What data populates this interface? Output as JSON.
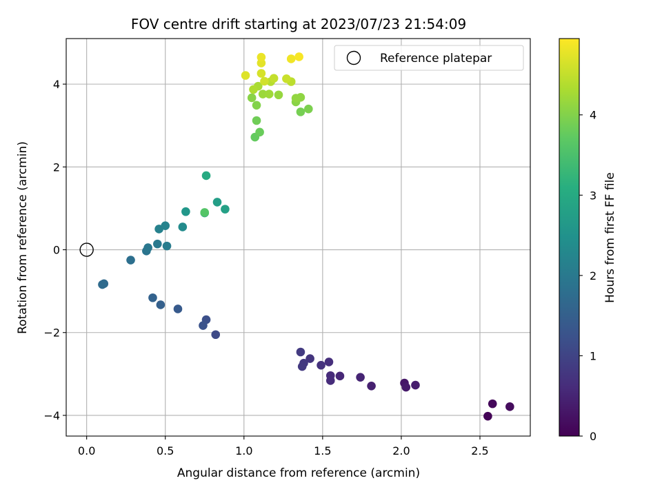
{
  "chart_data": {
    "type": "scatter",
    "title": "FOV centre drift starting at 2023/07/23 21:54:09",
    "xlabel": "Angular distance from reference (arcmin)",
    "ylabel": "Rotation from reference (arcmin)",
    "xlim": [
      -0.13,
      2.82
    ],
    "ylim": [
      -4.5,
      5.1
    ],
    "xticks": [
      0.0,
      0.5,
      1.0,
      1.5,
      2.0,
      2.5
    ],
    "xtick_labels": [
      "0.0",
      "0.5",
      "1.0",
      "1.5",
      "2.0",
      "2.5"
    ],
    "yticks": [
      -4,
      -2,
      0,
      2,
      4
    ],
    "ytick_labels": [
      "−4",
      "−2",
      "0",
      "2",
      "4"
    ],
    "grid": true,
    "legend": {
      "placement": "top-right",
      "entries": [
        "Reference platepar"
      ]
    },
    "reference_point": {
      "x": 0.0,
      "y": 0.0
    },
    "colorbar": {
      "label": "Hours from first FF file",
      "colormap": "viridis",
      "range": [
        0,
        4.95
      ],
      "ticks": [
        0,
        1,
        2,
        3,
        4
      ],
      "tick_labels": [
        "0",
        "1",
        "2",
        "3",
        "4"
      ]
    },
    "points": [
      {
        "x": 2.55,
        "y": -4.02,
        "c": 0.05
      },
      {
        "x": 2.58,
        "y": -3.72,
        "c": 0.1
      },
      {
        "x": 2.69,
        "y": -3.79,
        "c": 0.15
      },
      {
        "x": 2.02,
        "y": -3.22,
        "c": 0.3
      },
      {
        "x": 2.03,
        "y": -3.32,
        "c": 0.35
      },
      {
        "x": 2.09,
        "y": -3.27,
        "c": 0.4
      },
      {
        "x": 1.81,
        "y": -3.29,
        "c": 0.45
      },
      {
        "x": 1.74,
        "y": -3.08,
        "c": 0.5
      },
      {
        "x": 1.61,
        "y": -3.05,
        "c": 0.55
      },
      {
        "x": 1.55,
        "y": -3.04,
        "c": 0.6
      },
      {
        "x": 1.55,
        "y": -3.16,
        "c": 0.62
      },
      {
        "x": 1.54,
        "y": -2.71,
        "c": 0.65
      },
      {
        "x": 1.49,
        "y": -2.79,
        "c": 0.7
      },
      {
        "x": 1.42,
        "y": -2.63,
        "c": 0.75
      },
      {
        "x": 1.38,
        "y": -2.74,
        "c": 0.8
      },
      {
        "x": 1.37,
        "y": -2.82,
        "c": 0.82
      },
      {
        "x": 1.36,
        "y": -2.47,
        "c": 0.85
      },
      {
        "x": 0.82,
        "y": -2.05,
        "c": 1.1
      },
      {
        "x": 0.76,
        "y": -1.69,
        "c": 1.2
      },
      {
        "x": 0.74,
        "y": -1.83,
        "c": 1.25
      },
      {
        "x": 0.58,
        "y": -1.43,
        "c": 1.4
      },
      {
        "x": 0.47,
        "y": -1.33,
        "c": 1.5
      },
      {
        "x": 0.42,
        "y": -1.16,
        "c": 1.55
      },
      {
        "x": 0.11,
        "y": -0.82,
        "c": 1.7
      },
      {
        "x": 0.1,
        "y": -0.84,
        "c": 1.72
      },
      {
        "x": 0.28,
        "y": -0.25,
        "c": 1.8
      },
      {
        "x": 0.38,
        "y": -0.03,
        "c": 1.9
      },
      {
        "x": 0.39,
        "y": 0.05,
        "c": 1.95
      },
      {
        "x": 0.45,
        "y": 0.14,
        "c": 2.0
      },
      {
        "x": 0.51,
        "y": 0.09,
        "c": 2.05
      },
      {
        "x": 0.46,
        "y": 0.5,
        "c": 2.15
      },
      {
        "x": 0.5,
        "y": 0.58,
        "c": 2.2
      },
      {
        "x": 0.61,
        "y": 0.55,
        "c": 2.35
      },
      {
        "x": 0.63,
        "y": 0.92,
        "c": 2.6
      },
      {
        "x": 0.75,
        "y": 0.89,
        "c": 2.7
      },
      {
        "x": 0.75,
        "y": 0.9,
        "c": 3.6
      },
      {
        "x": 0.83,
        "y": 1.15,
        "c": 2.75
      },
      {
        "x": 0.88,
        "y": 0.98,
        "c": 2.8
      },
      {
        "x": 0.76,
        "y": 1.79,
        "c": 3.0
      },
      {
        "x": 1.07,
        "y": 2.72,
        "c": 3.75
      },
      {
        "x": 1.1,
        "y": 2.84,
        "c": 3.8
      },
      {
        "x": 1.08,
        "y": 3.12,
        "c": 3.85
      },
      {
        "x": 1.36,
        "y": 3.33,
        "c": 3.9
      },
      {
        "x": 1.41,
        "y": 3.4,
        "c": 3.95
      },
      {
        "x": 1.08,
        "y": 3.49,
        "c": 4.0
      },
      {
        "x": 1.05,
        "y": 3.67,
        "c": 4.05
      },
      {
        "x": 1.33,
        "y": 3.57,
        "c": 4.05
      },
      {
        "x": 1.36,
        "y": 3.68,
        "c": 4.1
      },
      {
        "x": 1.33,
        "y": 3.66,
        "c": 4.12
      },
      {
        "x": 1.22,
        "y": 3.74,
        "c": 4.15
      },
      {
        "x": 1.12,
        "y": 3.76,
        "c": 4.2
      },
      {
        "x": 1.16,
        "y": 3.76,
        "c": 4.22
      },
      {
        "x": 1.09,
        "y": 3.95,
        "c": 4.3
      },
      {
        "x": 1.06,
        "y": 3.87,
        "c": 4.35
      },
      {
        "x": 1.17,
        "y": 4.06,
        "c": 4.4
      },
      {
        "x": 1.3,
        "y": 4.06,
        "c": 4.45
      },
      {
        "x": 1.19,
        "y": 4.14,
        "c": 4.5
      },
      {
        "x": 1.27,
        "y": 4.13,
        "c": 4.55
      },
      {
        "x": 1.13,
        "y": 4.07,
        "c": 4.6
      },
      {
        "x": 1.11,
        "y": 4.26,
        "c": 4.65
      },
      {
        "x": 1.01,
        "y": 4.21,
        "c": 4.7
      },
      {
        "x": 1.11,
        "y": 4.51,
        "c": 4.75
      },
      {
        "x": 1.11,
        "y": 4.65,
        "c": 4.8
      },
      {
        "x": 1.3,
        "y": 4.61,
        "c": 4.85
      },
      {
        "x": 1.35,
        "y": 4.66,
        "c": 4.9
      }
    ]
  }
}
